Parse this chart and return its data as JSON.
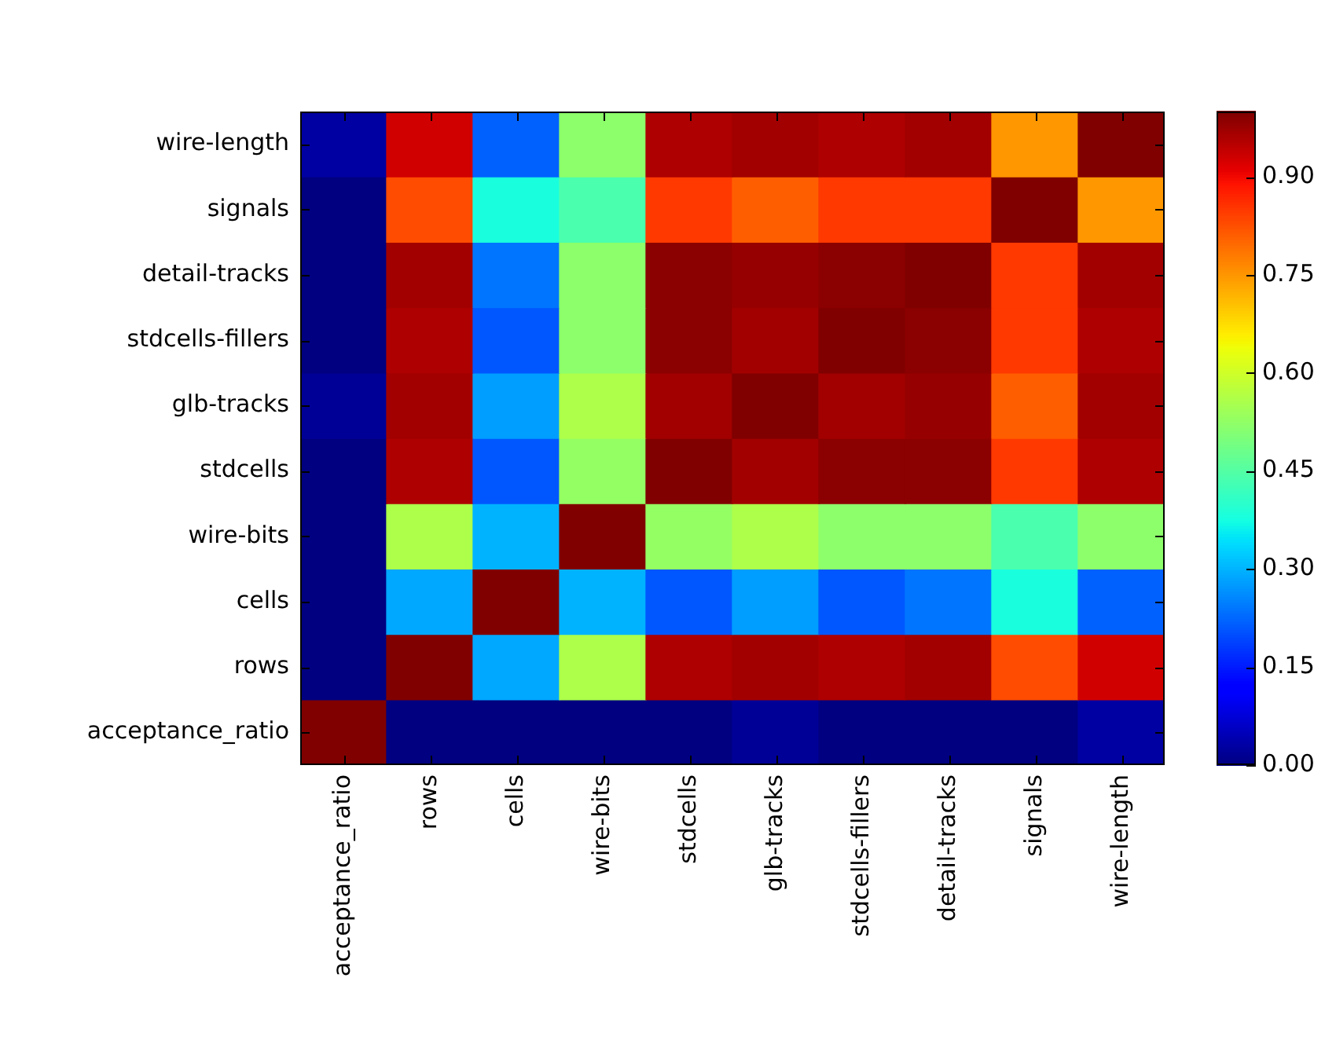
{
  "chart_data": {
    "type": "heatmap",
    "categories": [
      "acceptance_ratio",
      "rows",
      "cells",
      "wire-bits",
      "stdcells",
      "glb-tracks",
      "stdcells-fillers",
      "detail-tracks",
      "signals",
      "wire-length"
    ],
    "y_categories": [
      "wire-length",
      "signals",
      "detail-tracks",
      "stdcells-fillers",
      "glb-tracks",
      "stdcells",
      "wire-bits",
      "cells",
      "rows",
      "acceptance_ratio"
    ],
    "cells": [
      [
        0.03,
        0.93,
        0.22,
        0.52,
        0.96,
        0.97,
        0.96,
        0.97,
        0.75,
        1.0
      ],
      [
        0.0,
        0.83,
        0.38,
        0.44,
        0.85,
        0.81,
        0.85,
        0.85,
        1.0,
        0.75
      ],
      [
        0.0,
        0.97,
        0.24,
        0.52,
        0.99,
        0.98,
        0.99,
        1.0,
        0.85,
        0.97
      ],
      [
        0.0,
        0.96,
        0.21,
        0.52,
        0.99,
        0.97,
        1.0,
        0.99,
        0.85,
        0.96
      ],
      [
        0.02,
        0.97,
        0.28,
        0.56,
        0.97,
        1.0,
        0.97,
        0.98,
        0.81,
        0.97
      ],
      [
        0.0,
        0.96,
        0.21,
        0.53,
        1.0,
        0.97,
        0.99,
        0.99,
        0.85,
        0.96
      ],
      [
        0.0,
        0.56,
        0.3,
        1.0,
        0.53,
        0.56,
        0.52,
        0.52,
        0.44,
        0.52
      ],
      [
        0.0,
        0.29,
        1.0,
        0.3,
        0.21,
        0.28,
        0.21,
        0.24,
        0.38,
        0.22
      ],
      [
        0.0,
        1.0,
        0.29,
        0.56,
        0.96,
        0.97,
        0.96,
        0.97,
        0.83,
        0.93
      ],
      [
        1.0,
        0.0,
        0.0,
        0.0,
        0.0,
        0.02,
        0.0,
        0.0,
        0.0,
        0.03
      ]
    ],
    "clim": [
      0,
      1.0
    ],
    "cticks": [
      {
        "value": 0,
        "label": "0.00"
      },
      0.15,
      {
        "value": 0.3,
        "label": "0.30"
      },
      0.45,
      {
        "value": 0.6,
        "label": "0.60"
      },
      0.75,
      {
        "value": 0.9,
        "label": "0.90"
      }
    ]
  }
}
